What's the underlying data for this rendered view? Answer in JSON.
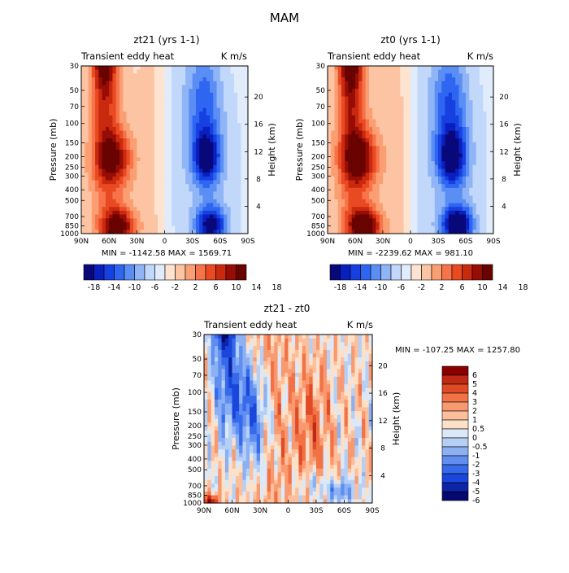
{
  "figure": {
    "title": "MAM"
  },
  "chart_data": [
    {
      "type": "heatmap",
      "title": "zt21 (yrs 1-1)",
      "subtitle_left": "Transient eddy heat",
      "subtitle_right": "K m/s",
      "xlabel": "",
      "ylabel": "Pressure (mb)",
      "ylabel_right": "Height (km)",
      "x_ticks": [
        "90N",
        "60N",
        "30N",
        "0",
        "30S",
        "60S",
        "90S"
      ],
      "y_ticks": [
        "30",
        "50",
        "70",
        "100",
        "150",
        "200",
        "250",
        "300",
        "400",
        "500",
        "700",
        "850",
        "1000"
      ],
      "y_ticks_right": [
        "20",
        "16",
        "12",
        "8",
        "4"
      ],
      "stats": "MIN = -1142.58   MAX = 1569.71",
      "colorbar_labels": [
        "-18",
        "-14",
        "-10",
        "-6",
        "-2",
        "2",
        "6",
        "10",
        "14",
        "18"
      ],
      "value_range": [
        -1142.58,
        1569.71
      ]
    },
    {
      "type": "heatmap",
      "title": "zt0 (yrs 1-1)",
      "subtitle_left": "Transient eddy heat",
      "subtitle_right": "K m/s",
      "xlabel": "",
      "ylabel": "Pressure (mb)",
      "ylabel_right": "Height (km)",
      "x_ticks": [
        "90N",
        "60N",
        "30N",
        "0",
        "30S",
        "60S",
        "90S"
      ],
      "y_ticks": [
        "30",
        "50",
        "70",
        "100",
        "150",
        "200",
        "250",
        "300",
        "400",
        "500",
        "700",
        "850",
        "1000"
      ],
      "y_ticks_right": [
        "20",
        "16",
        "12",
        "8",
        "4"
      ],
      "stats": "MIN = -2239.62   MAX = 981.10",
      "colorbar_labels": [
        "-18",
        "-14",
        "-10",
        "-6",
        "-2",
        "2",
        "6",
        "10",
        "14",
        "18"
      ],
      "value_range": [
        -2239.62,
        981.1
      ]
    },
    {
      "type": "heatmap",
      "title": "zt21 - zt0",
      "subtitle_left": "Transient eddy heat",
      "subtitle_right": "K m/s",
      "xlabel": "",
      "ylabel": "Pressure (mb)",
      "ylabel_right": "Height (km)",
      "x_ticks": [
        "90N",
        "60N",
        "30N",
        "0",
        "30S",
        "60S",
        "90S"
      ],
      "y_ticks": [
        "30",
        "50",
        "70",
        "100",
        "150",
        "200",
        "250",
        "300",
        "400",
        "500",
        "700",
        "850",
        "1000"
      ],
      "y_ticks_right": [
        "20",
        "16",
        "12",
        "8",
        "4"
      ],
      "stats": "MIN = -107.25   MAX = 1257.80",
      "colorbar_labels": [
        "6",
        "5",
        "4",
        "3",
        "2",
        "1",
        "0.5",
        "0",
        "-0.5",
        "-1",
        "-2",
        "-3",
        "-4",
        "-5",
        "-6"
      ],
      "value_range": [
        -107.25,
        1257.8
      ]
    }
  ],
  "colors": {
    "palette": [
      "#08087a",
      "#0a1fbf",
      "#1640e0",
      "#2e66f2",
      "#5a8ef5",
      "#90b5f7",
      "#c2d8fa",
      "#e0ecfb",
      "#fde3d0",
      "#fcc4a2",
      "#fb9f73",
      "#f7734a",
      "#ea4a22",
      "#c92a0f",
      "#980c06",
      "#690300"
    ],
    "diff_palette": [
      "#8a0000",
      "#c02a12",
      "#e04a25",
      "#f27246",
      "#f9996f",
      "#fcbf9c",
      "#fde0c8",
      "#dbe8f8",
      "#b6cff5",
      "#8cb1f3",
      "#5f8ef0",
      "#366aeb",
      "#1a46dc",
      "#0d24a8",
      "#05096e"
    ]
  }
}
